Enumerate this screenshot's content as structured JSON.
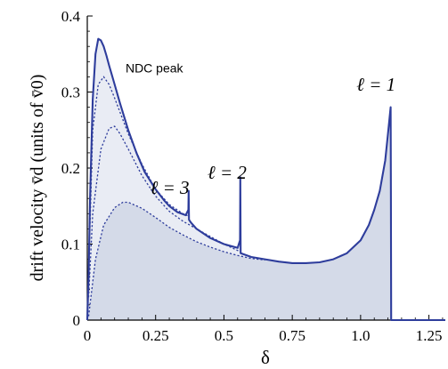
{
  "chart_data": {
    "type": "line",
    "xlabel": "δ",
    "ylabel": "drift velocity v̄d (units of v̄0)",
    "xlim": [
      0,
      1.31
    ],
    "ylim": [
      0,
      0.4
    ],
    "xticks": [
      0,
      0.25,
      0.5,
      0.75,
      1.0,
      1.25
    ],
    "xtick_labels": [
      "0",
      "0.25",
      "0.5",
      "0.75",
      "1.0",
      "1.25"
    ],
    "yticks": [
      0,
      0.1,
      0.2,
      0.3,
      0.4
    ],
    "ytick_labels": [
      "0",
      "0.1",
      "0.2",
      "0.3",
      "0.4"
    ],
    "colors": {
      "curve": "#2e3d9c",
      "fill_light": "#e9ecf4",
      "fill_dark": "#d4dae8",
      "axis": "#000000"
    },
    "series": [
      {
        "style": "solid",
        "x": [
          0,
          0.005,
          0.01,
          0.02,
          0.03,
          0.04,
          0.05,
          0.06,
          0.07,
          0.08,
          0.1,
          0.12,
          0.15,
          0.18,
          0.21,
          0.25,
          0.28,
          0.3,
          0.33,
          0.36,
          0.37,
          0.371,
          0.372,
          0.38,
          0.4,
          0.45,
          0.5,
          0.55,
          0.559,
          0.56,
          0.561,
          0.6,
          0.65,
          0.7,
          0.75,
          0.8,
          0.85,
          0.9,
          0.95,
          1.0,
          1.03,
          1.05,
          1.07,
          1.09,
          1.1,
          1.11,
          1.111,
          1.112,
          1.13,
          1.2,
          1.25,
          1.31
        ],
        "y": [
          0,
          0.06,
          0.16,
          0.29,
          0.35,
          0.37,
          0.368,
          0.36,
          0.348,
          0.335,
          0.31,
          0.285,
          0.25,
          0.22,
          0.195,
          0.172,
          0.158,
          0.15,
          0.142,
          0.138,
          0.145,
          0.17,
          0.132,
          0.128,
          0.12,
          0.108,
          0.1,
          0.095,
          0.105,
          0.188,
          0.088,
          0.083,
          0.08,
          0.077,
          0.075,
          0.075,
          0.076,
          0.08,
          0.088,
          0.105,
          0.125,
          0.145,
          0.17,
          0.21,
          0.245,
          0.28,
          0.16,
          0.0,
          0.0,
          0.0,
          0.0,
          0.0
        ]
      },
      {
        "style": "dotted",
        "x": [
          0.005,
          0.02,
          0.04,
          0.06,
          0.08,
          0.1,
          0.15,
          0.2,
          0.25,
          0.3,
          0.35,
          0.37
        ],
        "y": [
          0.06,
          0.25,
          0.31,
          0.32,
          0.31,
          0.292,
          0.245,
          0.205,
          0.172,
          0.152,
          0.14,
          0.137
        ]
      },
      {
        "style": "dotted",
        "x": [
          0.005,
          0.02,
          0.05,
          0.08,
          0.1,
          0.12,
          0.15,
          0.2,
          0.25,
          0.3,
          0.35,
          0.4,
          0.45,
          0.5,
          0.56
        ],
        "y": [
          0.03,
          0.14,
          0.225,
          0.252,
          0.255,
          0.245,
          0.225,
          0.19,
          0.163,
          0.143,
          0.13,
          0.12,
          0.11,
          0.1,
          0.09
        ]
      },
      {
        "style": "dotted",
        "x": [
          0.005,
          0.03,
          0.06,
          0.1,
          0.13,
          0.15,
          0.2,
          0.25,
          0.3,
          0.35,
          0.4,
          0.45,
          0.5,
          0.55,
          0.6,
          0.65
        ],
        "y": [
          0.005,
          0.08,
          0.125,
          0.148,
          0.155,
          0.155,
          0.147,
          0.135,
          0.122,
          0.112,
          0.103,
          0.096,
          0.09,
          0.085,
          0.081,
          0.079
        ]
      }
    ],
    "annotations": [
      {
        "text": "NDC peak",
        "x": 0.14,
        "y": 0.326,
        "font": "sans"
      },
      {
        "text": "ℓ = 3",
        "x": 0.23,
        "y": 0.166,
        "font": "serif"
      },
      {
        "text": "ℓ = 2",
        "x": 0.44,
        "y": 0.186,
        "font": "serif"
      },
      {
        "text": "ℓ = 1",
        "x": 0.985,
        "y": 0.302,
        "font": "serif"
      }
    ]
  }
}
